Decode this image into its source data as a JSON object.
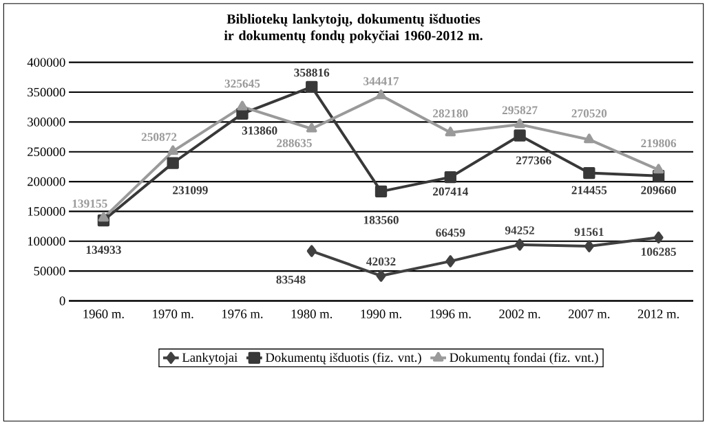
{
  "chart_data": {
    "type": "line",
    "title": "Bibliotekų lankytojų, dokumentų išduoties ir dokumentų fondų pokyčiai 1960-2012 m.",
    "categories": [
      "1960 m.",
      "1970 m.",
      "1976 m.",
      "1980 m.",
      "1990 m.",
      "1996 m.",
      "2002 m.",
      "2007 m.",
      "2012 m."
    ],
    "series": [
      {
        "name": "Lankytojai",
        "color": "#404040",
        "marker": "diamond",
        "values": [
          null,
          null,
          null,
          83548,
          42032,
          66459,
          94252,
          91561,
          106285
        ]
      },
      {
        "name": "Dokumentų išduotis (fiz. vnt.)",
        "color": "#383838",
        "marker": "square",
        "values": [
          134933,
          231099,
          313860,
          358816,
          183560,
          207414,
          277366,
          214455,
          209660
        ]
      },
      {
        "name": "Dokumentų fondai (fiz. vnt.)",
        "color": "#9a9a9a",
        "marker": "triangle",
        "values": [
          139155,
          250872,
          325645,
          288635,
          344417,
          282180,
          295827,
          270520,
          219806
        ]
      }
    ],
    "ylim": [
      0,
      400000
    ],
    "yticks": [
      0,
      50000,
      100000,
      150000,
      200000,
      250000,
      300000,
      350000,
      400000
    ],
    "grid": "y",
    "legend": "bottom",
    "data_labels": true
  }
}
